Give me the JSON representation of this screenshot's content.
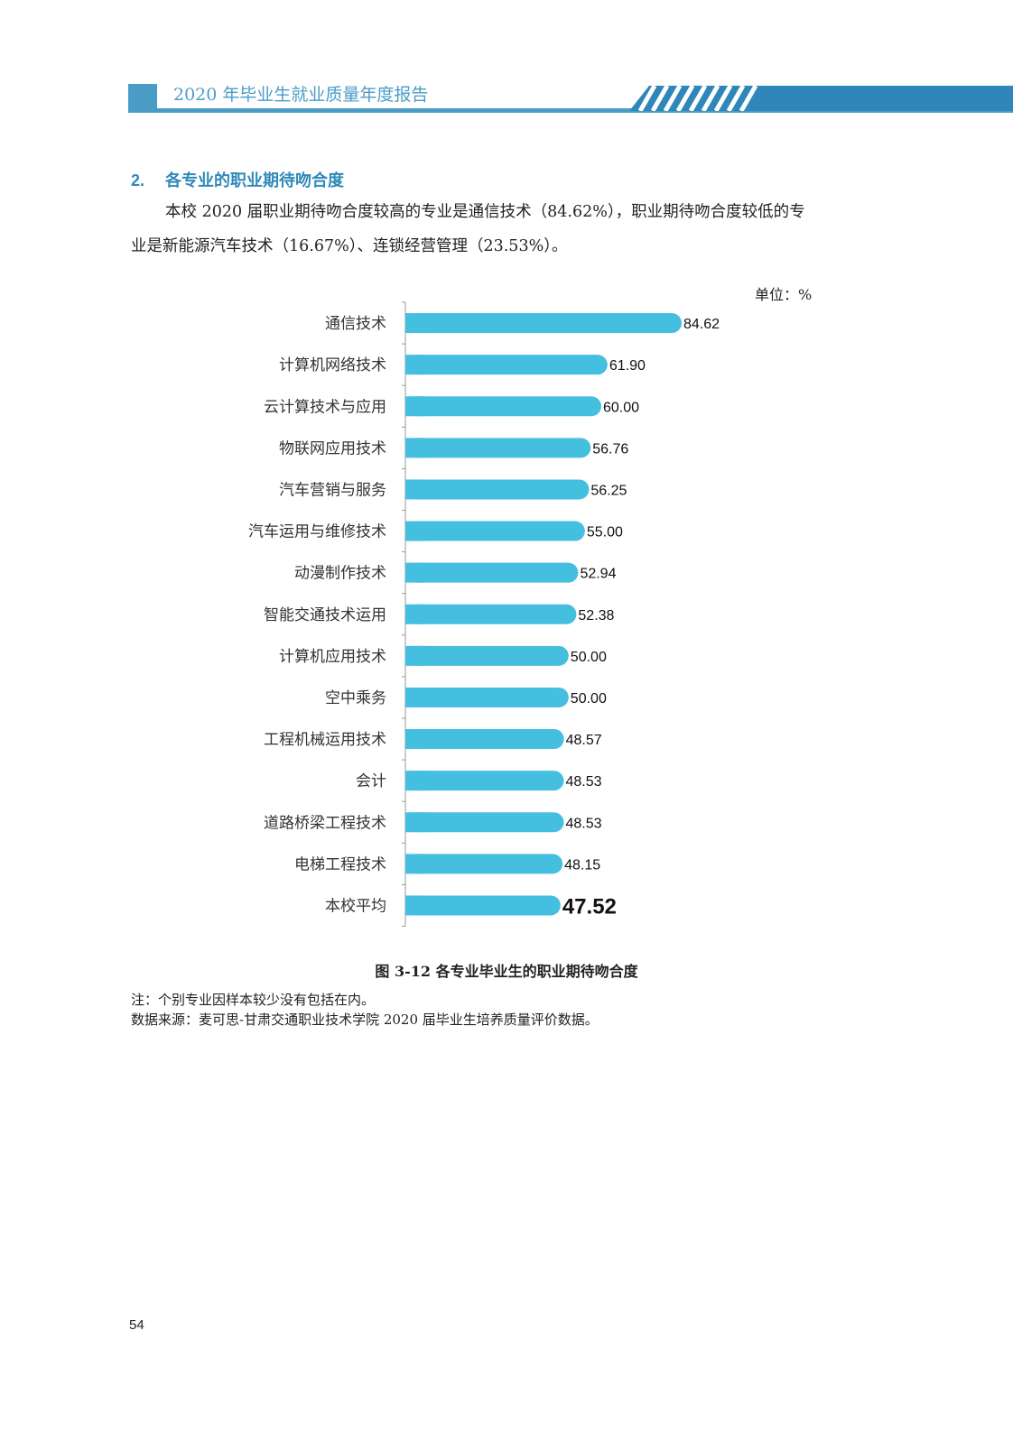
{
  "header": {
    "title": "2020 年毕业生就业质量年度报告",
    "accent_color": "#4a9cc7"
  },
  "section": {
    "number": "2.",
    "title": "各专业的职业期待吻合度",
    "title_color": "#2e8ab8"
  },
  "paragraph": {
    "line1": "本校 2020 届职业期待吻合度较高的专业是通信技术（84.62%），职业期待吻合度较低的专",
    "line2": "业是新能源汽车技术（16.67%）、连锁经营管理（23.53%）。"
  },
  "chart_data": {
    "type": "bar",
    "orientation": "horizontal",
    "unit_label": "单位：%",
    "categories": [
      "通信技术",
      "计算机网络技术",
      "云计算技术与应用",
      "物联网应用技术",
      "汽车营销与服务",
      "汽车运用与维修技术",
      "动漫制作技术",
      "智能交通技术运用",
      "计算机应用技术",
      "空中乘务",
      "工程机械运用技术",
      "会计",
      "道路桥梁工程技术",
      "电梯工程技术",
      "本校平均"
    ],
    "values": [
      84.62,
      61.9,
      60.0,
      56.76,
      56.25,
      55.0,
      52.94,
      52.38,
      50.0,
      50.0,
      48.57,
      48.53,
      48.53,
      48.15,
      47.52
    ],
    "value_labels": [
      "84.62",
      "61.90",
      "60.00",
      "56.76",
      "56.25",
      "55.00",
      "52.94",
      "52.38",
      "50.00",
      "50.00",
      "48.57",
      "48.53",
      "48.53",
      "48.15",
      "47.52"
    ],
    "xlim": [
      0,
      100
    ],
    "bar_color": "#45bfe0",
    "highlight_last": true
  },
  "caption": "图 3-12  各专业毕业生的职业期待吻合度",
  "notes": {
    "note1": "注：个别专业因样本较少没有包括在内。",
    "note2": "数据来源：麦可思-甘肃交通职业技术学院 2020 届毕业生培养质量评价数据。"
  },
  "page_number": "54"
}
